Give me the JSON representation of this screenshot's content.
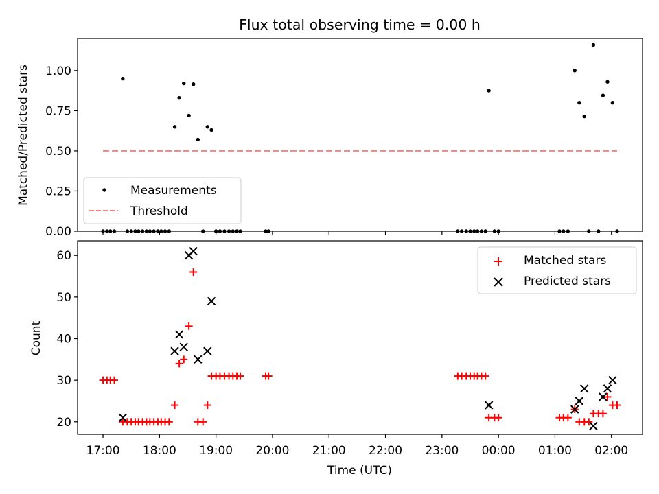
{
  "figure": {
    "title": "Flux total observing time = 0.00 h"
  },
  "chart_data": [
    {
      "type": "scatter",
      "name": "ratio-panel",
      "ylabel": "Matched/Predicted stars",
      "xlabel": "",
      "xlim": [
        16.55,
        26.55
      ],
      "ylim": [
        0,
        1.2
      ],
      "yticks": [
        0.0,
        0.25,
        0.5,
        0.75,
        1.0
      ],
      "ytick_labels": [
        "0.00",
        "0.25",
        "0.50",
        "0.75",
        "1.00"
      ],
      "grid": false,
      "legend": {
        "position": "lower-left",
        "entries": [
          {
            "label": "Measurements",
            "marker": "dot",
            "color": "#000000"
          },
          {
            "label": "Threshold",
            "marker": "dashed-line",
            "color": "#fa7f7f"
          }
        ]
      },
      "series": [
        {
          "name": "Measurements",
          "color": "#000000",
          "x": [
            17.0,
            17.07,
            17.13,
            17.2,
            17.35,
            17.43,
            17.5,
            17.57,
            17.63,
            17.7,
            17.77,
            17.83,
            17.9,
            17.97,
            18.03,
            18.1,
            18.17,
            18.27,
            18.35,
            18.43,
            18.52,
            18.6,
            18.68,
            18.77,
            18.85,
            18.92,
            19.0,
            19.07,
            19.15,
            19.23,
            19.3,
            19.37,
            19.43,
            19.88,
            19.93,
            23.28,
            23.35,
            23.43,
            23.5,
            23.57,
            23.63,
            23.7,
            23.77,
            23.83,
            23.93,
            24.0,
            25.08,
            25.15,
            25.23,
            25.35,
            25.43,
            25.52,
            25.6,
            25.68,
            25.77,
            25.85,
            25.93,
            26.02,
            26.1
          ],
          "y": [
            0.0,
            0.0,
            0.0,
            0.0,
            0.95,
            0.0,
            0.0,
            0.0,
            0.0,
            0.0,
            0.0,
            0.0,
            0.0,
            0.0,
            0.0,
            0.0,
            0.0,
            0.65,
            0.83,
            0.92,
            0.72,
            0.915,
            0.57,
            0.0,
            0.65,
            0.63,
            0.0,
            0.0,
            0.0,
            0.0,
            0.0,
            0.0,
            0.0,
            0.0,
            0.0,
            0.0,
            0.0,
            0.0,
            0.0,
            0.0,
            0.0,
            0.0,
            0.0,
            0.875,
            0.0,
            0.0,
            0.0,
            0.0,
            0.0,
            1.0,
            0.8,
            0.715,
            0.0,
            1.16,
            0.0,
            0.845,
            0.93,
            0.8,
            0.0
          ]
        },
        {
          "name": "Threshold",
          "type": "line",
          "style": "dashed",
          "color": "#fa7f7f",
          "x": [
            17.0,
            26.1
          ],
          "y": [
            0.5,
            0.5
          ]
        }
      ]
    },
    {
      "type": "scatter",
      "name": "count-panel",
      "ylabel": "Count",
      "xlabel": "Time (UTC)",
      "xlim": [
        16.55,
        26.55
      ],
      "ylim": [
        17,
        63.5
      ],
      "yticks": [
        20,
        30,
        40,
        50,
        60
      ],
      "ytick_labels": [
        "20",
        "30",
        "40",
        "50",
        "60"
      ],
      "xticks": [
        17,
        18,
        19,
        20,
        21,
        22,
        23,
        24,
        25,
        26
      ],
      "xtick_labels": [
        "17:00",
        "18:00",
        "19:00",
        "20:00",
        "21:00",
        "22:00",
        "23:00",
        "00:00",
        "01:00",
        "02:00"
      ],
      "grid": false,
      "legend": {
        "position": "upper-right",
        "entries": [
          {
            "label": "Matched stars",
            "marker": "plus",
            "color": "#ff0000"
          },
          {
            "label": "Predicted stars",
            "marker": "x",
            "color": "#000000"
          }
        ]
      },
      "series": [
        {
          "name": "Matched stars",
          "marker": "plus",
          "color": "#ff0000",
          "x": [
            17.0,
            17.07,
            17.13,
            17.2,
            17.35,
            17.43,
            17.5,
            17.57,
            17.63,
            17.7,
            17.77,
            17.83,
            17.9,
            17.97,
            18.03,
            18.1,
            18.17,
            18.27,
            18.35,
            18.43,
            18.52,
            18.6,
            18.68,
            18.77,
            18.85,
            18.92,
            19.0,
            19.07,
            19.15,
            19.23,
            19.3,
            19.37,
            19.43,
            19.88,
            19.93,
            23.28,
            23.35,
            23.43,
            23.5,
            23.57,
            23.63,
            23.7,
            23.77,
            23.83,
            23.93,
            24.0,
            25.08,
            25.15,
            25.23,
            25.35,
            25.43,
            25.52,
            25.6,
            25.68,
            25.77,
            25.85,
            25.93,
            26.02,
            26.1
          ],
          "y": [
            30,
            30,
            30,
            30,
            20,
            20,
            20,
            20,
            20,
            20,
            20,
            20,
            20,
            20,
            20,
            20,
            20,
            24,
            34,
            35,
            43,
            56,
            20,
            20,
            24,
            31,
            31,
            31,
            31,
            31,
            31,
            31,
            31,
            31,
            31,
            31,
            31,
            31,
            31,
            31,
            31,
            31,
            31,
            21,
            21,
            21,
            21,
            21,
            21,
            23,
            20,
            20,
            20,
            22,
            22,
            22,
            26,
            24,
            24
          ]
        },
        {
          "name": "Predicted stars",
          "marker": "x",
          "color": "#000000",
          "x": [
            17.35,
            18.27,
            18.35,
            18.43,
            18.52,
            18.6,
            18.68,
            18.85,
            18.92,
            23.83,
            25.35,
            25.43,
            25.52,
            25.68,
            25.85,
            25.93,
            26.02
          ],
          "y": [
            21,
            37,
            41,
            38,
            60,
            61,
            35,
            37,
            49,
            24,
            23,
            25,
            28,
            19,
            26,
            28,
            30
          ]
        }
      ]
    }
  ]
}
